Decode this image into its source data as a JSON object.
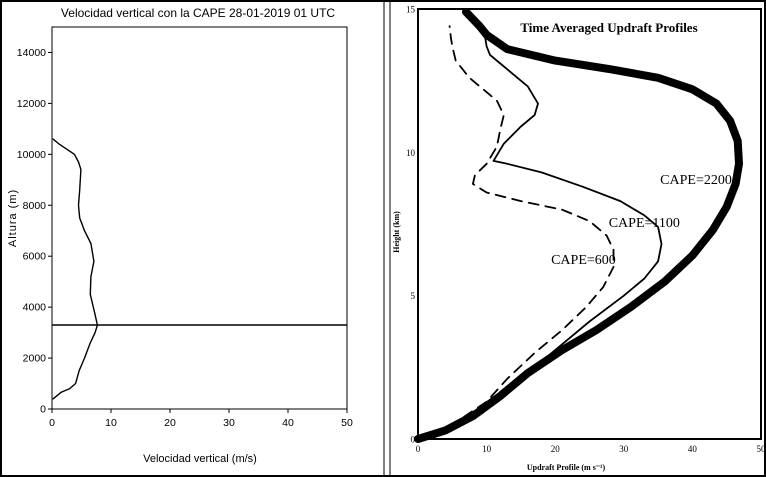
{
  "chart_data": [
    {
      "type": "line",
      "title": "Velocidad vertical con la CAPE 28-01-2019 01 UTC",
      "xlabel": "Velocidad vertical (m/s)",
      "ylabel": "Altura (m)",
      "xlim": [
        0,
        50
      ],
      "ylim": [
        0,
        15000
      ],
      "x_ticks": [
        "0",
        "10",
        "20",
        "30",
        "40",
        "50"
      ],
      "y_ticks": [
        "0",
        "2000",
        "4000",
        "6000",
        "8000",
        "10000",
        "12000",
        "14000"
      ],
      "series": [
        {
          "x": [
            0.2,
            1.5,
            3,
            4,
            4.6,
            5.5,
            6.5,
            7.3,
            7.7,
            7.2,
            6.5,
            6.6,
            7.1,
            6.6,
            5.5,
            4.7,
            4.5,
            4.7,
            4.9,
            4.5,
            3.8,
            2.5,
            1.2,
            0.2
          ],
          "y": [
            400,
            650,
            800,
            1000,
            1500,
            2000,
            2600,
            3000,
            3300,
            3800,
            4500,
            5200,
            5800,
            6500,
            7000,
            7500,
            8000,
            8600,
            9400,
            9700,
            10000,
            10200,
            10400,
            10600
          ]
        }
      ],
      "reference_lines": [
        {
          "orientation": "horizontal",
          "y": 3300
        }
      ],
      "grid": false
    },
    {
      "type": "line",
      "title": "Time Averaged Updraft Profiles",
      "xlabel": "Updraft Profile (m s⁻¹)",
      "ylabel": "Height (km)",
      "xlim": [
        0,
        50
      ],
      "ylim": [
        0,
        15
      ],
      "x_ticks": [
        "0",
        "10",
        "20",
        "30",
        "40",
        "50"
      ],
      "y_ticks": [
        "0",
        "5",
        "10",
        "15"
      ],
      "series": [
        {
          "name": "CAPE=2200",
          "style": "thick",
          "x": [
            0,
            4,
            8,
            12,
            16,
            21,
            26,
            31,
            36,
            40,
            43,
            45,
            46.3,
            46.8,
            46.6,
            45.5,
            43.5,
            40,
            35,
            28,
            20,
            13,
            10,
            9,
            7.8,
            7
          ],
          "y": [
            0,
            0.3,
            0.8,
            1.5,
            2.3,
            3.1,
            3.8,
            4.6,
            5.5,
            6.4,
            7.3,
            8.1,
            8.9,
            9.6,
            10.4,
            11.1,
            11.7,
            12.2,
            12.6,
            12.9,
            13.2,
            13.6,
            14.1,
            14.4,
            14.7,
            14.9
          ]
        },
        {
          "name": "CAPE=1100",
          "style": "thin",
          "x": [
            0,
            5,
            10,
            15,
            20,
            25,
            30,
            33,
            35,
            35.5,
            35,
            33,
            29.5,
            24,
            18,
            13,
            11,
            12.5,
            15,
            17,
            17.5,
            16,
            14,
            12,
            10.5,
            10,
            9.8,
            8.5
          ],
          "y": [
            0,
            0.5,
            1.2,
            2.1,
            3.1,
            4.1,
            5.0,
            5.6,
            6.2,
            6.8,
            7.4,
            7.8,
            8.3,
            8.8,
            9.3,
            9.6,
            9.7,
            10.3,
            10.9,
            11.3,
            11.7,
            12.3,
            12.7,
            13.1,
            13.4,
            13.7,
            14.0,
            14.4
          ]
        },
        {
          "name": "CAPE=600",
          "style": "dashed",
          "x": [
            0,
            5,
            10,
            13,
            17,
            21,
            24.5,
            27,
            28.5,
            28.5,
            27.5,
            25,
            21,
            15,
            10,
            8,
            8.3,
            10,
            11.5,
            12,
            12.5,
            11.5,
            9.5,
            7.5,
            5.5,
            5,
            4.8,
            4.6
          ],
          "y": [
            0,
            0.5,
            1.3,
            2.1,
            3.0,
            3.8,
            4.6,
            5.3,
            6.0,
            6.6,
            7.1,
            7.6,
            8.0,
            8.3,
            8.6,
            8.9,
            9.2,
            9.6,
            10.2,
            10.8,
            11.3,
            11.8,
            12.2,
            12.6,
            13.2,
            13.7,
            14.0,
            14.4
          ]
        }
      ],
      "annotations": [
        {
          "text": "CAPE=2200",
          "x": 35.3,
          "y": 8.9
        },
        {
          "text": "CAPE=1100",
          "x": 27.8,
          "y": 7.4
        },
        {
          "text": "CAPE=600",
          "x": 19.4,
          "y": 6.1
        }
      ],
      "grid": false
    }
  ]
}
